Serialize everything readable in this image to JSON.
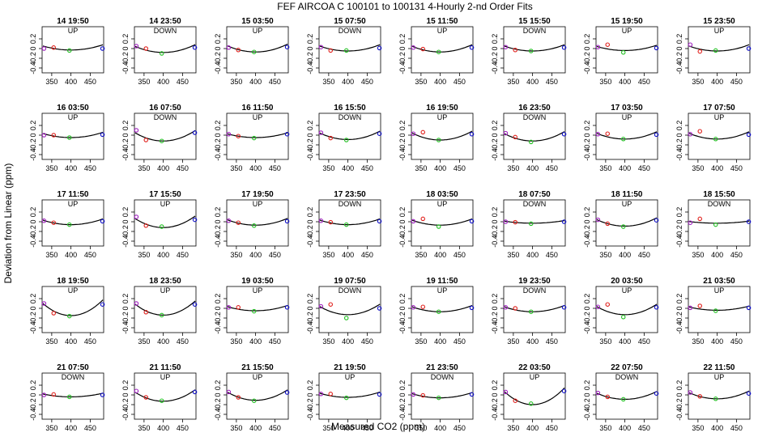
{
  "figure": {
    "title": "FEF   AIRCOA C   100101 to 100131   4-Hourly 2-nd Order Fits",
    "xlabel": "Measured CO2 (ppm)",
    "ylabel": "Deviation from Linear (ppm)"
  },
  "colors": {
    "curve": "#000000",
    "red": "#e0201c",
    "green": "#22c022",
    "blue": "#1010c8",
    "magenta": "#a020c0"
  },
  "chart_data": {
    "type": "scatter",
    "xlim": [
      325,
      485
    ],
    "ylim": [
      -0.5,
      0.45
    ],
    "x_ticks": [
      350,
      400,
      450
    ],
    "y_ticks": [
      -0.4,
      -0.2,
      0.0,
      0.2
    ],
    "y_tick_labels": [
      "-0.4",
      "-0.2",
      "0",
      "0.2"
    ],
    "grid": false,
    "point_x": [
      330,
      355,
      396,
      482
    ],
    "panels": [
      {
        "title": "14 19:50",
        "dir": "UP",
        "y": [
          0.0,
          0.02,
          -0.04,
          0.0
        ],
        "a": 0.1,
        "v": -0.03
      },
      {
        "title": "14 23:50",
        "dir": "DOWN",
        "y": [
          0.05,
          0.0,
          -0.1,
          0.02
        ],
        "a": 0.15,
        "v": -0.08
      },
      {
        "title": "15 03:50",
        "dir": "UP",
        "y": [
          0.02,
          -0.03,
          -0.07,
          0.03
        ],
        "a": 0.15,
        "v": -0.07
      },
      {
        "title": "15 07:50",
        "dir": "DOWN",
        "y": [
          0.03,
          -0.04,
          -0.04,
          0.01
        ],
        "a": 0.12,
        "v": -0.05
      },
      {
        "title": "15 11:50",
        "dir": "UP",
        "y": [
          0.02,
          -0.01,
          -0.07,
          0.02
        ],
        "a": 0.14,
        "v": -0.07
      },
      {
        "title": "15 15:50",
        "dir": "DOWN",
        "y": [
          0.03,
          -0.03,
          -0.05,
          0.02
        ],
        "a": 0.12,
        "v": -0.05
      },
      {
        "title": "15 19:50",
        "dir": "UP",
        "y": [
          0.03,
          0.08,
          -0.08,
          0.01
        ],
        "a": 0.1,
        "v": -0.04
      },
      {
        "title": "15 23:50",
        "dir": "UP",
        "y": [
          0.08,
          -0.06,
          -0.04,
          0.0
        ],
        "a": 0.12,
        "v": -0.05
      },
      {
        "title": "16 03:50",
        "dir": "UP",
        "y": [
          0.0,
          0.0,
          -0.05,
          0.01
        ],
        "a": 0.1,
        "v": -0.05
      },
      {
        "title": "16 07:50",
        "dir": "DOWN",
        "y": [
          0.1,
          -0.1,
          -0.12,
          0.05
        ],
        "a": 0.2,
        "v": -0.12
      },
      {
        "title": "16 11:50",
        "dir": "UP",
        "y": [
          0.02,
          -0.02,
          -0.06,
          0.02
        ],
        "a": 0.09,
        "v": -0.05
      },
      {
        "title": "16 15:50",
        "dir": "DOWN",
        "y": [
          0.05,
          -0.06,
          -0.1,
          0.03
        ],
        "a": 0.16,
        "v": -0.09
      },
      {
        "title": "16 19:50",
        "dir": "UP",
        "y": [
          0.03,
          0.06,
          -0.1,
          0.02
        ],
        "a": 0.17,
        "v": -0.1
      },
      {
        "title": "16 23:50",
        "dir": "DOWN",
        "y": [
          0.04,
          -0.04,
          -0.14,
          0.02
        ],
        "a": 0.18,
        "v": -0.12
      },
      {
        "title": "17 03:50",
        "dir": "UP",
        "y": [
          0.02,
          0.03,
          -0.08,
          0.01
        ],
        "a": 0.14,
        "v": -0.08
      },
      {
        "title": "17 07:50",
        "dir": "UP",
        "y": [
          0.02,
          0.08,
          -0.08,
          0.01
        ],
        "a": 0.14,
        "v": -0.08
      },
      {
        "title": "17 11:50",
        "dir": "UP",
        "y": [
          0.02,
          -0.02,
          -0.06,
          0.01
        ],
        "a": 0.11,
        "v": -0.06
      },
      {
        "title": "17 15:50",
        "dir": "UP",
        "y": [
          0.1,
          -0.08,
          -0.1,
          0.04
        ],
        "a": 0.22,
        "v": -0.12
      },
      {
        "title": "17 19:50",
        "dir": "UP",
        "y": [
          0.02,
          -0.02,
          -0.08,
          0.01
        ],
        "a": 0.13,
        "v": -0.07
      },
      {
        "title": "17 23:50",
        "dir": "DOWN",
        "y": [
          0.02,
          -0.01,
          -0.06,
          0.01
        ],
        "a": 0.11,
        "v": -0.06
      },
      {
        "title": "18 03:50",
        "dir": "UP",
        "y": [
          0.01,
          0.06,
          -0.1,
          0.01
        ],
        "a": 0.12,
        "v": -0.07
      },
      {
        "title": "18 07:50",
        "dir": "DOWN",
        "y": [
          0.0,
          -0.01,
          -0.04,
          0.0
        ],
        "a": 0.05,
        "v": -0.03
      },
      {
        "title": "18 11:50",
        "dir": "UP",
        "y": [
          0.04,
          -0.04,
          -0.1,
          0.03
        ],
        "a": 0.16,
        "v": -0.09
      },
      {
        "title": "18 15:50",
        "dir": "DOWN",
        "y": [
          -0.02,
          0.06,
          -0.06,
          0.0
        ],
        "a": 0.04,
        "v": -0.03
      },
      {
        "title": "18 19:50",
        "dir": "UP",
        "y": [
          0.1,
          -0.1,
          -0.16,
          0.08
        ],
        "a": 0.3,
        "v": -0.15
      },
      {
        "title": "18 23:50",
        "dir": "UP",
        "y": [
          0.1,
          -0.08,
          -0.14,
          0.08
        ],
        "a": 0.27,
        "v": -0.14
      },
      {
        "title": "19 03:50",
        "dir": "UP",
        "y": [
          0.02,
          0.02,
          -0.06,
          0.02
        ],
        "a": 0.1,
        "v": -0.05
      },
      {
        "title": "19 07:50",
        "dir": "DOWN",
        "y": [
          0.04,
          0.08,
          -0.2,
          0.0
        ],
        "a": 0.2,
        "v": -0.13
      },
      {
        "title": "19 11:50",
        "dir": "UP",
        "y": [
          0.02,
          0.03,
          -0.07,
          0.01
        ],
        "a": 0.12,
        "v": -0.07
      },
      {
        "title": "19 23:50",
        "dir": "DOWN",
        "y": [
          0.02,
          0.0,
          -0.07,
          0.02
        ],
        "a": 0.12,
        "v": -0.07
      },
      {
        "title": "20 03:50",
        "dir": "UP",
        "y": [
          0.03,
          0.08,
          -0.18,
          0.02
        ],
        "a": 0.2,
        "v": -0.13
      },
      {
        "title": "21 03:50",
        "dir": "UP",
        "y": [
          0.01,
          0.05,
          -0.05,
          0.01
        ],
        "a": 0.08,
        "v": -0.04
      },
      {
        "title": "21 07:50",
        "dir": "DOWN",
        "y": [
          0.0,
          0.01,
          -0.04,
          0.0
        ],
        "a": 0.07,
        "v": -0.04
      },
      {
        "title": "21 11:50",
        "dir": "UP",
        "y": [
          0.08,
          -0.05,
          -0.12,
          0.06
        ],
        "a": 0.22,
        "v": -0.13
      },
      {
        "title": "21 15:50",
        "dir": "UP",
        "y": [
          0.06,
          -0.05,
          -0.12,
          0.05
        ],
        "a": 0.2,
        "v": -0.11
      },
      {
        "title": "21 19:50",
        "dir": "UP",
        "y": [
          0.02,
          0.02,
          -0.06,
          0.01
        ],
        "a": 0.1,
        "v": -0.05
      },
      {
        "title": "21 23:50",
        "dir": "DOWN",
        "y": [
          0.01,
          -0.01,
          -0.06,
          0.01
        ],
        "a": 0.1,
        "v": -0.06
      },
      {
        "title": "22 03:50",
        "dir": "UP",
        "y": [
          0.06,
          -0.12,
          -0.18,
          0.08
        ],
        "a": 0.32,
        "v": -0.2
      },
      {
        "title": "22 07:50",
        "dir": "DOWN",
        "y": [
          0.04,
          -0.04,
          -0.09,
          0.03
        ],
        "a": 0.15,
        "v": -0.09
      },
      {
        "title": "22 11:50",
        "dir": "UP",
        "y": [
          0.05,
          -0.03,
          -0.08,
          0.03
        ],
        "a": 0.15,
        "v": -0.08
      }
    ]
  }
}
